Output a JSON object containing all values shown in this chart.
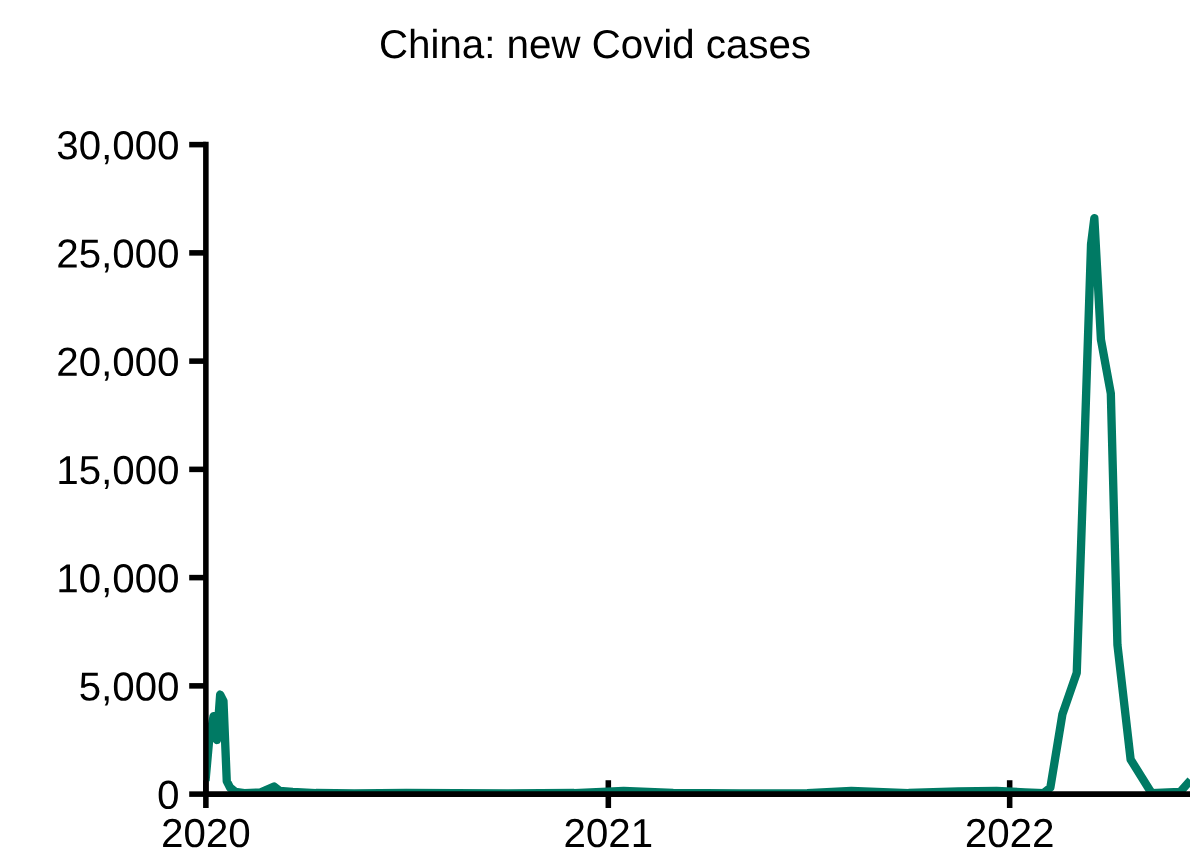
{
  "chart_data": {
    "type": "line",
    "title": "China: new Covid cases",
    "series": [
      {
        "color": "#007a64",
        "x": [
          "2020-01-01",
          "2020-01-04",
          "2020-01-08",
          "2020-01-11",
          "2020-01-14",
          "2020-01-17",
          "2020-01-20",
          "2020-01-23",
          "2020-01-28",
          "2020-02-05",
          "2020-02-20",
          "2020-03-03",
          "2020-03-08",
          "2020-03-20",
          "2020-04-10",
          "2020-05-15",
          "2020-07-01",
          "2020-08-15",
          "2020-10-01",
          "2020-12-01",
          "2021-01-15",
          "2021-03-01",
          "2021-05-01",
          "2021-07-01",
          "2021-08-10",
          "2021-10-01",
          "2021-11-15",
          "2021-12-20",
          "2022-01-15",
          "2022-02-01",
          "2022-02-07",
          "2022-02-18",
          "2022-03-03",
          "2022-03-10",
          "2022-03-16",
          "2022-03-19",
          "2022-03-25",
          "2022-04-03",
          "2022-04-09",
          "2022-04-21",
          "2022-05-10",
          "2022-05-25",
          "2022-06-05",
          "2022-06-12"
        ],
        "values": [
          800,
          2500,
          3600,
          2500,
          4600,
          4300,
          600,
          300,
          100,
          50,
          80,
          350,
          150,
          100,
          50,
          30,
          60,
          40,
          30,
          50,
          150,
          60,
          30,
          40,
          150,
          50,
          120,
          150,
          80,
          50,
          300,
          3700,
          5600,
          16100,
          25400,
          26600,
          21000,
          18500,
          6900,
          1600,
          50,
          80,
          100,
          500
        ]
      }
    ],
    "xlim": [
      "2020-01-01",
      "2022-06-14"
    ],
    "xticks": [
      {
        "value": "2020-01-01",
        "label": "2020"
      },
      {
        "value": "2021-01-01",
        "label": "2021"
      },
      {
        "value": "2022-01-01",
        "label": "2022"
      }
    ],
    "ylim": [
      0,
      30000
    ],
    "yticks": [
      {
        "value": 0,
        "label": "0"
      },
      {
        "value": 5000,
        "label": "5,000"
      },
      {
        "value": 10000,
        "label": "10,000"
      },
      {
        "value": 15000,
        "label": "15,000"
      },
      {
        "value": 20000,
        "label": "20,000"
      },
      {
        "value": 25000,
        "label": "25,000"
      },
      {
        "value": 30000,
        "label": "30,000"
      }
    ],
    "grid": false,
    "legend": false
  }
}
